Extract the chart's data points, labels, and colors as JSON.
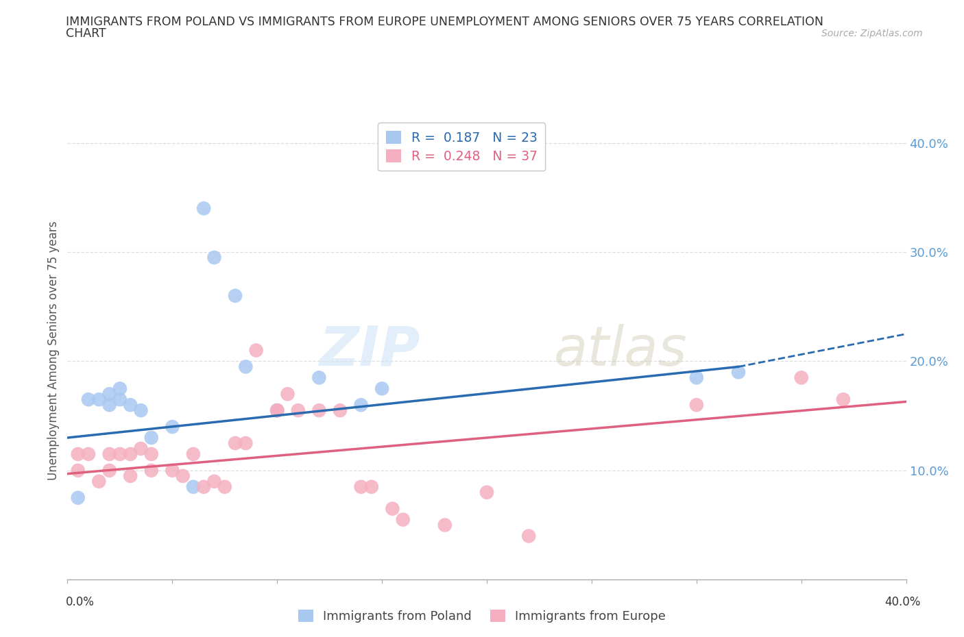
{
  "title_line1": "IMMIGRANTS FROM POLAND VS IMMIGRANTS FROM EUROPE UNEMPLOYMENT AMONG SENIORS OVER 75 YEARS CORRELATION",
  "title_line2": "CHART",
  "source": "Source: ZipAtlas.com",
  "ylabel": "Unemployment Among Seniors over 75 years",
  "xlim": [
    0.0,
    0.4
  ],
  "ylim": [
    0.0,
    0.42
  ],
  "legend_poland_R": "0.187",
  "legend_poland_N": "23",
  "legend_europe_R": "0.248",
  "legend_europe_N": "37",
  "poland_color": "#a8c8f0",
  "europe_color": "#f5afc0",
  "poland_line_color": "#2a6ab0",
  "europe_line_color": "#e06080",
  "poland_line_solid_end": 0.32,
  "poland_line_start_y": 0.13,
  "poland_line_end_y": 0.195,
  "poland_line_dash_end_y": 0.225,
  "europe_line_start_y": 0.097,
  "europe_line_end_y": 0.163,
  "poland_scatter_x": [
    0.005,
    0.01,
    0.015,
    0.02,
    0.02,
    0.025,
    0.025,
    0.03,
    0.035,
    0.04,
    0.05,
    0.06,
    0.065,
    0.07,
    0.08,
    0.085,
    0.1,
    0.1,
    0.12,
    0.14,
    0.15,
    0.3,
    0.32
  ],
  "poland_scatter_y": [
    0.075,
    0.165,
    0.165,
    0.17,
    0.16,
    0.165,
    0.175,
    0.16,
    0.155,
    0.13,
    0.14,
    0.085,
    0.34,
    0.295,
    0.26,
    0.195,
    0.155,
    0.155,
    0.185,
    0.16,
    0.175,
    0.185,
    0.19
  ],
  "europe_scatter_x": [
    0.005,
    0.005,
    0.01,
    0.015,
    0.02,
    0.02,
    0.025,
    0.03,
    0.03,
    0.035,
    0.04,
    0.04,
    0.05,
    0.055,
    0.06,
    0.065,
    0.07,
    0.075,
    0.08,
    0.085,
    0.09,
    0.1,
    0.1,
    0.105,
    0.11,
    0.12,
    0.13,
    0.14,
    0.145,
    0.155,
    0.16,
    0.18,
    0.2,
    0.22,
    0.3,
    0.35,
    0.37
  ],
  "europe_scatter_y": [
    0.115,
    0.1,
    0.115,
    0.09,
    0.115,
    0.1,
    0.115,
    0.115,
    0.095,
    0.12,
    0.115,
    0.1,
    0.1,
    0.095,
    0.115,
    0.085,
    0.09,
    0.085,
    0.125,
    0.125,
    0.21,
    0.155,
    0.155,
    0.17,
    0.155,
    0.155,
    0.155,
    0.085,
    0.085,
    0.065,
    0.055,
    0.05,
    0.08,
    0.04,
    0.16,
    0.185,
    0.165
  ],
  "background_color": "#ffffff",
  "watermark_zip": "ZIP",
  "watermark_atlas": "atlas",
  "grid_color": "#dddddd",
  "ytick_color": "#5b9bd5",
  "yticks": [
    0.1,
    0.2,
    0.3,
    0.4
  ],
  "ytick_labels": [
    "10.0%",
    "20.0%",
    "30.0%",
    "40.0%"
  ]
}
